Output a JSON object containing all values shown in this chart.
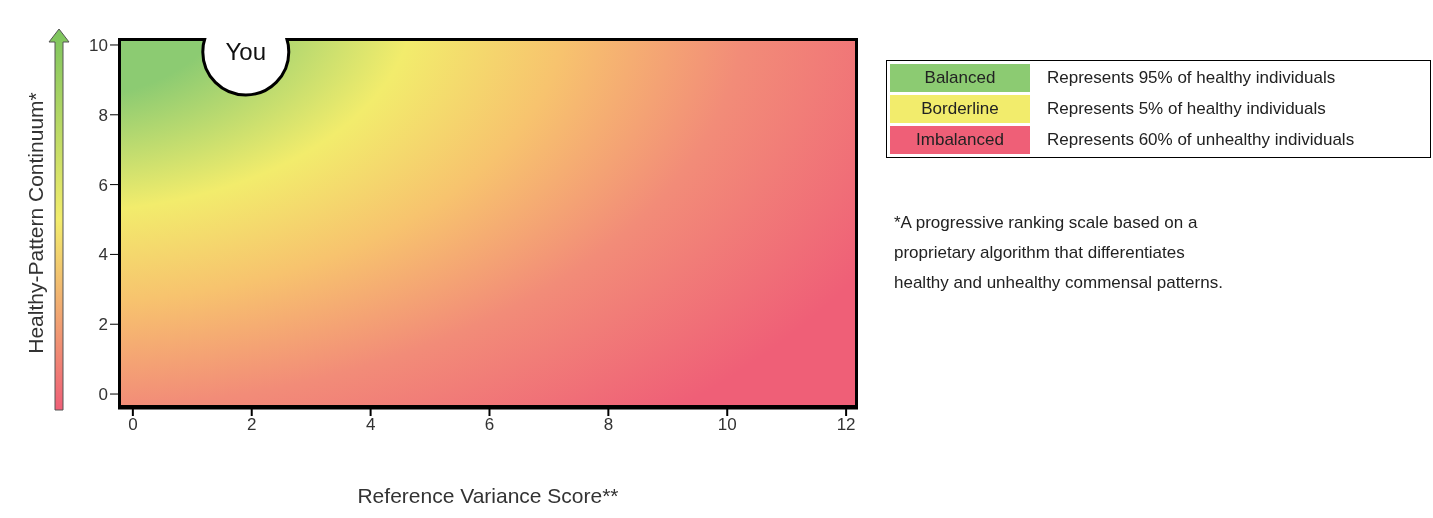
{
  "chart_data": {
    "type": "scatter",
    "xlabel": "Reference Variance Score**",
    "ylabel": "Healthy-Pattern Continuum*",
    "xlim": [
      -0.25,
      12.2
    ],
    "xticks": [
      0,
      2,
      4,
      6,
      8,
      10,
      12
    ],
    "ylim": [
      -0.4,
      10.2
    ],
    "yticks": [
      0,
      2,
      4,
      6,
      8,
      10
    ],
    "grid": false,
    "legend": false,
    "series": [
      {
        "name": "You",
        "color": "#ffffff",
        "x": [
          1.9
        ],
        "values": [
          9.8
        ]
      }
    ],
    "annotations": [
      "Balanced",
      "Represents 95% of healthy individuals",
      "Borderline",
      "Represents 5% of healthy individuals",
      "Imbalanced",
      "Represents 60% of unhealthy individuals",
      "*A progressive ranking scale based on a proprietary algorithm that differentiates healthy and unhealthy commensal patterns."
    ]
  }
}
